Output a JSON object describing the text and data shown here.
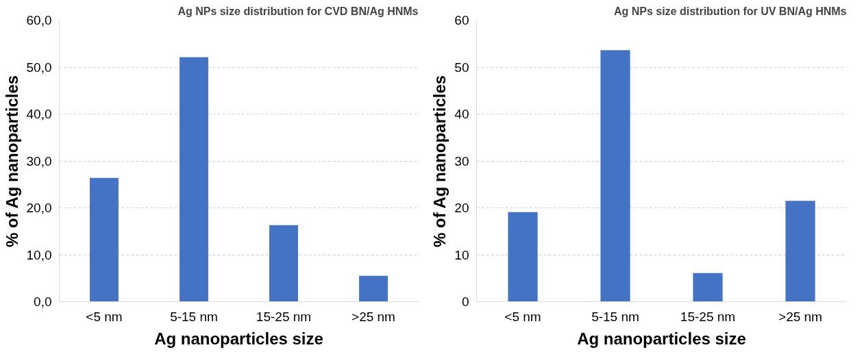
{
  "chart_data": [
    {
      "type": "bar",
      "title": "Ag NPs size distribution for CVD BN/Ag HNMs",
      "xlabel": "Ag nanoparticles size",
      "ylabel": "% of Ag nanoparticles",
      "categories": [
        "<5 nm",
        "5-15 nm",
        "15-25 nm",
        ">25 nm"
      ],
      "values": [
        26.4,
        52.1,
        16.3,
        5.5
      ],
      "color": "#4472c4",
      "ylim": [
        0,
        60
      ],
      "yticks": [
        {
          "value": 0,
          "label": "0,0"
        },
        {
          "value": 10,
          "label": "10,0"
        },
        {
          "value": 20,
          "label": "20,0"
        },
        {
          "value": 30,
          "label": "30,0"
        },
        {
          "value": 40,
          "label": "40,0"
        },
        {
          "value": 50,
          "label": "50,0"
        },
        {
          "value": 60,
          "label": "60,0"
        }
      ],
      "grid": "y"
    },
    {
      "type": "bar",
      "title": "Ag NPs size distribution for UV BN/Ag HNMs",
      "xlabel": "Ag nanoparticles size",
      "ylabel": "% of Ag nanoparticles",
      "categories": [
        "<5 nm",
        "5-15 nm",
        "15-25 nm",
        ">25 nm"
      ],
      "values": [
        19.1,
        53.6,
        6.1,
        21.5
      ],
      "color": "#4472c4",
      "ylim": [
        0,
        60
      ],
      "yticks": [
        0,
        10,
        20,
        30,
        40,
        50,
        60
      ],
      "grid": "y"
    }
  ]
}
